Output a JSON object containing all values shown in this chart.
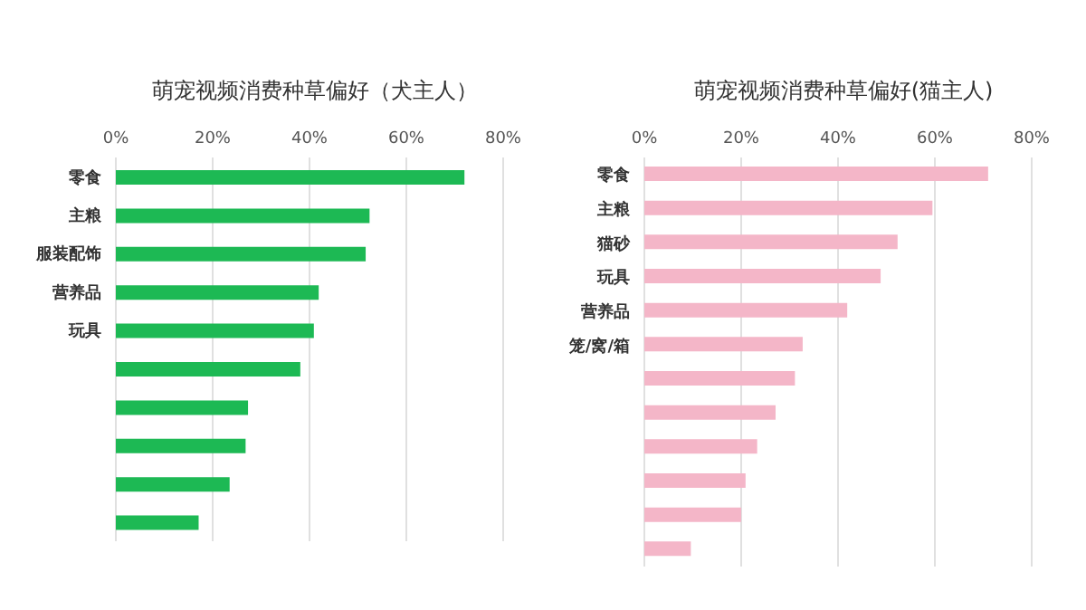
{
  "chart_data": [
    {
      "type": "bar",
      "orientation": "horizontal",
      "title": "萌宠视频消费种草偏好（犬主人）",
      "categories": [
        "零食",
        "主粮",
        "服装配饰",
        "营养品",
        "玩具",
        null,
        null,
        null,
        null,
        null
      ],
      "series": [
        {
          "color": "#1db954",
          "values": [
            72,
            52.4,
            51.6,
            41.9,
            40.9,
            38.1,
            27.3,
            26.8,
            23.5,
            17.1
          ]
        }
      ],
      "xlim": [
        0,
        80
      ],
      "xticks": [
        {
          "value": 0,
          "label": "0%"
        },
        {
          "value": 20,
          "label": "20%"
        },
        {
          "value": 40,
          "label": "40%"
        },
        {
          "value": 60,
          "label": "60%"
        },
        {
          "value": 80,
          "label": "80%"
        }
      ],
      "grid": "x",
      "legend": false
    },
    {
      "type": "bar",
      "orientation": "horizontal",
      "title": "萌宠视频消费种草偏好(猫主人)",
      "categories": [
        "零食",
        "主粮",
        "猫砂",
        "玩具",
        "营养品",
        "笼/窝/箱",
        null,
        null,
        null,
        null,
        null,
        null
      ],
      "series": [
        {
          "color": "#f4b6c8",
          "values": [
            71,
            59.5,
            52.3,
            48.8,
            41.9,
            32.7,
            31.1,
            27.1,
            23.3,
            20.9,
            20,
            9.6
          ]
        }
      ],
      "xlim": [
        0,
        80
      ],
      "xticks": [
        {
          "value": 0,
          "label": "0%"
        },
        {
          "value": 20,
          "label": "20%"
        },
        {
          "value": 40,
          "label": "40%"
        },
        {
          "value": 60,
          "label": "60%"
        },
        {
          "value": 80,
          "label": "80%"
        }
      ],
      "grid": "x",
      "legend": false
    }
  ]
}
